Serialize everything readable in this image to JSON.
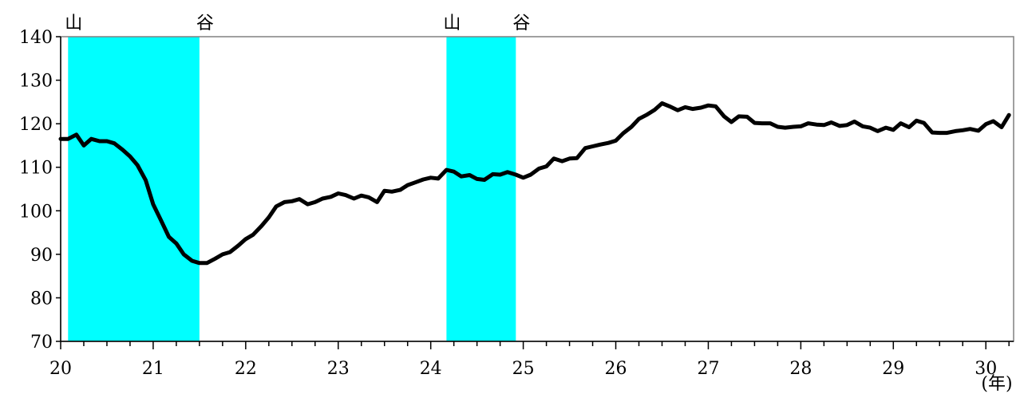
{
  "chart_data": {
    "type": "line",
    "title": "",
    "xlabel": "(年)",
    "ylabel": "",
    "xlim": [
      20,
      30.3
    ],
    "ylim": [
      70,
      140
    ],
    "y_ticks": [
      70,
      80,
      90,
      100,
      110,
      120,
      130,
      140
    ],
    "x_ticks": [
      20,
      21,
      22,
      23,
      24,
      25,
      26,
      27,
      28,
      29,
      30
    ],
    "x_tick_labels": [
      "20",
      "21",
      "22",
      "23",
      "24",
      "25",
      "26",
      "27",
      "28",
      "29",
      "30"
    ],
    "y_tick_labels": [
      "70",
      "80",
      "90",
      "100",
      "110",
      "120",
      "130",
      "140"
    ],
    "grid": false,
    "legend": "none",
    "colors": {
      "line": "#000000",
      "recession": "#00ffff"
    },
    "recessions": [
      {
        "start": 20.08,
        "end": 21.5,
        "start_label": "山",
        "end_label": "谷"
      },
      {
        "start": 24.17,
        "end": 24.92,
        "start_label": "山",
        "end_label": "谷"
      }
    ],
    "series": [
      {
        "x": [
          20.0,
          20.08,
          20.17,
          20.25,
          20.33,
          20.42,
          20.5,
          20.58,
          20.67,
          20.75,
          20.83,
          20.92,
          21.0,
          21.08,
          21.17,
          21.25,
          21.33,
          21.42,
          21.5,
          21.58,
          21.67,
          21.75,
          21.83,
          21.92,
          22.0,
          22.08,
          22.17,
          22.25,
          22.33,
          22.42,
          22.5,
          22.58,
          22.67,
          22.75,
          22.83,
          22.92,
          23.0,
          23.08,
          23.17,
          23.25,
          23.33,
          23.42,
          23.5,
          23.58,
          23.67,
          23.75,
          23.83,
          23.92,
          24.0,
          24.08,
          24.17,
          24.25,
          24.33,
          24.42,
          24.5,
          24.58,
          24.67,
          24.75,
          24.83,
          24.92,
          25.0,
          25.08,
          25.17,
          25.25,
          25.33,
          25.42,
          25.5,
          25.58,
          25.67,
          25.75,
          25.83,
          25.92,
          26.0,
          26.08,
          26.17,
          26.25,
          26.33,
          26.42,
          26.5,
          26.58,
          26.67,
          26.75,
          26.83,
          26.92,
          27.0,
          27.08,
          27.17,
          27.25,
          27.33,
          27.42,
          27.5,
          27.58,
          27.67,
          27.75,
          27.83,
          27.92,
          28.0,
          28.08,
          28.17,
          28.25,
          28.33,
          28.42,
          28.5,
          28.58,
          28.67,
          28.75,
          28.83,
          28.92,
          29.0,
          29.08,
          29.17,
          29.25,
          29.33,
          29.42,
          29.5,
          29.58,
          29.67,
          29.75,
          29.83,
          29.92,
          30.0,
          30.08,
          30.17,
          30.25
        ],
        "values": [
          116.5,
          116.5,
          117.5,
          115,
          116.5,
          116,
          116,
          115.5,
          114,
          112.5,
          110.5,
          107,
          101.5,
          98,
          94,
          92.5,
          90,
          88.5,
          88,
          88,
          89,
          90,
          90.5,
          92,
          93.5,
          94.5,
          96.5,
          98.5,
          101,
          102,
          102.2,
          102.7,
          101.5,
          102,
          102.8,
          103.2,
          104,
          103.6,
          102.8,
          103.5,
          103.1,
          102,
          104.6,
          104.4,
          104.8,
          105.9,
          106.5,
          107.2,
          107.6,
          107.4,
          109.4,
          109,
          107.9,
          108.2,
          107.3,
          107.1,
          108.4,
          108.3,
          108.9,
          108.3,
          107.6,
          108.3,
          109.7,
          110.2,
          112,
          111.4,
          112,
          112.1,
          114.4,
          114.8,
          115.2,
          115.6,
          116.1,
          117.8,
          119.3,
          121.1,
          122,
          123.2,
          124.7,
          124,
          123.1,
          123.8,
          123.4,
          123.7,
          124.2,
          124,
          121.7,
          120.4,
          121.7,
          121.6,
          120.2,
          120.1,
          120.1,
          119.3,
          119.1,
          119.3,
          119.4,
          120.1,
          119.8,
          119.7,
          120.3,
          119.5,
          119.7,
          120.5,
          119.4,
          119.1,
          118.3,
          119.1,
          118.6,
          120.1,
          119.2,
          120.7,
          120.2,
          118,
          117.9,
          117.9,
          118.3,
          118.5,
          118.8,
          118.4,
          119.9,
          120.6,
          119.2,
          122
        ]
      }
    ]
  }
}
